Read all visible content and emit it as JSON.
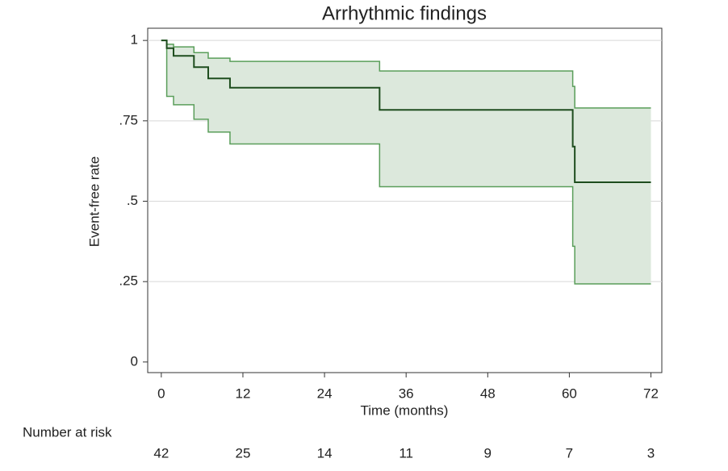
{
  "chart_data": {
    "type": "line",
    "step": "post",
    "title": "Arrhythmic findings",
    "x_label": "Time (months)",
    "y_label": "Event-free rate",
    "x": [
      0,
      0.8,
      1.8,
      4.8,
      6.9,
      10.1,
      32.1,
      60.5,
      60.8,
      72
    ],
    "series": [
      {
        "color": "#1e4d1e",
        "values": [
          1,
          0.976,
          0.952,
          0.917,
          0.882,
          0.853,
          0.784,
          0.67,
          0.559,
          0.559
        ]
      }
    ],
    "band": {
      "color": "#5a9e5a",
      "fill": "#dce8dc",
      "upper": [
        1,
        0.988,
        0.98,
        0.962,
        0.945,
        0.935,
        0.905,
        0.857,
        0.79,
        0.79
      ],
      "lower": [
        1,
        0.826,
        0.8,
        0.755,
        0.715,
        0.678,
        0.545,
        0.36,
        0.243,
        0.243
      ]
    },
    "xlim": [
      -2,
      73.6
    ],
    "ylim": [
      -0.033,
      1.038
    ],
    "xticks": [
      0,
      12,
      24,
      36,
      48,
      60,
      72
    ],
    "yticks": [
      0,
      {
        "value": 0.25,
        "label": ".25"
      },
      {
        "value": 0.5,
        "label": ".5"
      },
      {
        "value": 0.75,
        "label": ".75"
      },
      1
    ],
    "grid": true,
    "risk_table": {
      "title": "Number at risk",
      "values": [
        42,
        25,
        14,
        11,
        9,
        7,
        3
      ]
    }
  }
}
